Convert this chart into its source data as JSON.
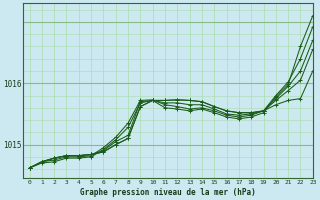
{
  "title": "Graphe pression niveau de la mer (hPa)",
  "bg_color": "#cce8f0",
  "grid_color_major": "#88bb88",
  "grid_color_minor": "#aaddaa",
  "line_color": "#1a5c1a",
  "xlim": [
    -0.5,
    23
  ],
  "ylim": [
    1014.45,
    1017.3
  ],
  "ytick_positions": [
    1015.0,
    1016.0
  ],
  "ytick_labels": [
    "1015",
    "1016"
  ],
  "xticks": [
    0,
    1,
    2,
    3,
    4,
    5,
    6,
    7,
    8,
    9,
    10,
    11,
    12,
    13,
    14,
    15,
    16,
    17,
    18,
    19,
    20,
    21,
    22,
    23
  ],
  "series": [
    [
      1014.62,
      1014.72,
      1014.78,
      1014.82,
      1014.82,
      1014.84,
      1014.88,
      1015.0,
      1015.1,
      1015.62,
      1015.72,
      1015.72,
      1015.73,
      1015.72,
      1015.7,
      1015.62,
      1015.55,
      1015.52,
      1015.52,
      1015.55,
      1015.65,
      1015.72,
      1015.75,
      1016.2
    ],
    [
      1014.62,
      1014.72,
      1014.78,
      1014.82,
      1014.82,
      1014.84,
      1014.88,
      1015.0,
      1015.1,
      1015.62,
      1015.72,
      1015.72,
      1015.73,
      1015.72,
      1015.7,
      1015.62,
      1015.55,
      1015.52,
      1015.52,
      1015.55,
      1015.72,
      1015.88,
      1016.05,
      1016.55
    ],
    [
      1014.62,
      1014.72,
      1014.78,
      1014.82,
      1014.82,
      1014.84,
      1014.9,
      1015.05,
      1015.15,
      1015.7,
      1015.72,
      1015.68,
      1015.68,
      1015.65,
      1015.65,
      1015.58,
      1015.5,
      1015.48,
      1015.5,
      1015.55,
      1015.75,
      1015.95,
      1016.2,
      1016.7
    ],
    [
      1014.62,
      1014.72,
      1014.75,
      1014.8,
      1014.8,
      1014.82,
      1014.95,
      1015.12,
      1015.35,
      1015.72,
      1015.73,
      1015.65,
      1015.62,
      1015.58,
      1015.6,
      1015.55,
      1015.48,
      1015.45,
      1015.48,
      1015.55,
      1015.8,
      1016.02,
      1016.4,
      1016.92
    ],
    [
      1014.62,
      1014.7,
      1014.72,
      1014.78,
      1014.78,
      1014.8,
      1014.92,
      1015.08,
      1015.28,
      1015.68,
      1015.72,
      1015.6,
      1015.58,
      1015.55,
      1015.58,
      1015.52,
      1015.45,
      1015.42,
      1015.45,
      1015.52,
      1015.78,
      1015.98,
      1016.6,
      1017.1
    ]
  ]
}
